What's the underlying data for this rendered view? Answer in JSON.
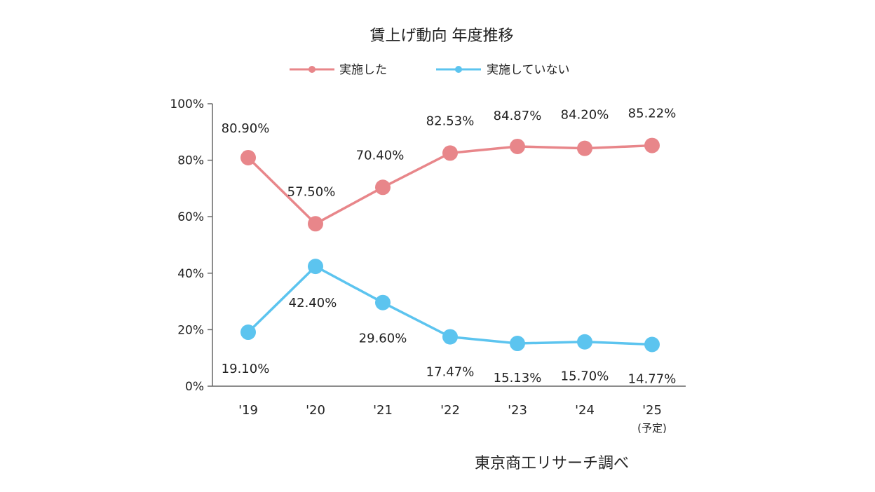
{
  "chart_data": {
    "type": "line",
    "title": "賃上げ動向 年度推移",
    "categories": [
      "'19",
      "'20",
      "'21",
      "'22",
      "'23",
      "'24",
      "'25"
    ],
    "category_note": {
      "index": 6,
      "text": "(予定)"
    },
    "ylim": [
      0,
      100
    ],
    "yticks": [
      "0%",
      "20%",
      "40%",
      "60%",
      "80%",
      "100%"
    ],
    "ytick_values": [
      0,
      20,
      40,
      60,
      80,
      100
    ],
    "legend_position": "top",
    "grid": false,
    "series": [
      {
        "name": "実施した",
        "color": "#e8868a",
        "values": [
          80.9,
          57.5,
          70.4,
          82.53,
          84.87,
          84.2,
          85.22
        ],
        "labels": [
          "80.90%",
          "57.50%",
          "70.40%",
          "82.53%",
          "84.87%",
          "84.20%",
          "85.22%"
        ]
      },
      {
        "name": "実施していない",
        "color": "#5cc4ef",
        "values": [
          19.1,
          42.4,
          29.6,
          17.47,
          15.13,
          15.7,
          14.77
        ],
        "labels": [
          "19.10%",
          "42.40%",
          "29.60%",
          "17.47%",
          "15.13%",
          "15.70%",
          "14.77%"
        ]
      }
    ],
    "source": "東京商工リサーチ調べ"
  }
}
